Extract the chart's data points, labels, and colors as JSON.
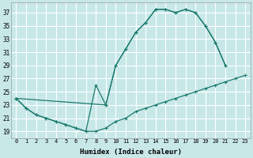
{
  "xlabel": "Humidex (Indice chaleur)",
  "background_color": "#c8e8e8",
  "grid_color": "#ffffff",
  "line_color": "#1a7a6e",
  "xlim": [
    -0.5,
    23.5
  ],
  "ylim": [
    18.0,
    38.5
  ],
  "xticks": [
    0,
    1,
    2,
    3,
    4,
    5,
    6,
    7,
    8,
    9,
    10,
    11,
    12,
    13,
    14,
    15,
    16,
    17,
    18,
    19,
    20,
    21,
    22,
    23
  ],
  "yticks": [
    19,
    21,
    23,
    25,
    27,
    29,
    31,
    33,
    35,
    37
  ],
  "line1_x": [
    0,
    1,
    2,
    3,
    4,
    5,
    6,
    7,
    8,
    9,
    10,
    11,
    12,
    13,
    14,
    15,
    16,
    17,
    18,
    19,
    20,
    21,
    22,
    23
  ],
  "line1_y": [
    24.0,
    22.5,
    21.5,
    21.0,
    20.5,
    20.0,
    19.5,
    19.0,
    19.0,
    19.5,
    20.5,
    21.0,
    22.0,
    22.5,
    23.0,
    23.5,
    24.0,
    24.5,
    25.0,
    25.5,
    26.0,
    26.5,
    27.0,
    27.5
  ],
  "line2_x": [
    0,
    1,
    2,
    3,
    4,
    5,
    6,
    7,
    8,
    9,
    10,
    11,
    12,
    13,
    14,
    15,
    16,
    17,
    18,
    19,
    20,
    21
  ],
  "line2_y": [
    24.0,
    22.5,
    21.5,
    21.0,
    20.5,
    20.0,
    19.5,
    19.0,
    26.0,
    23.0,
    29.0,
    31.5,
    34.0,
    35.5,
    37.5,
    37.5,
    37.0,
    37.5,
    37.0,
    35.0,
    32.5,
    29.0
  ],
  "line3_x": [
    0,
    9,
    10,
    11,
    12,
    13,
    14,
    15,
    16,
    17,
    18,
    19,
    20,
    21
  ],
  "line3_y": [
    24.0,
    23.0,
    29.0,
    31.5,
    34.0,
    35.5,
    37.5,
    37.5,
    37.0,
    37.5,
    37.0,
    35.0,
    32.5,
    29.0
  ]
}
